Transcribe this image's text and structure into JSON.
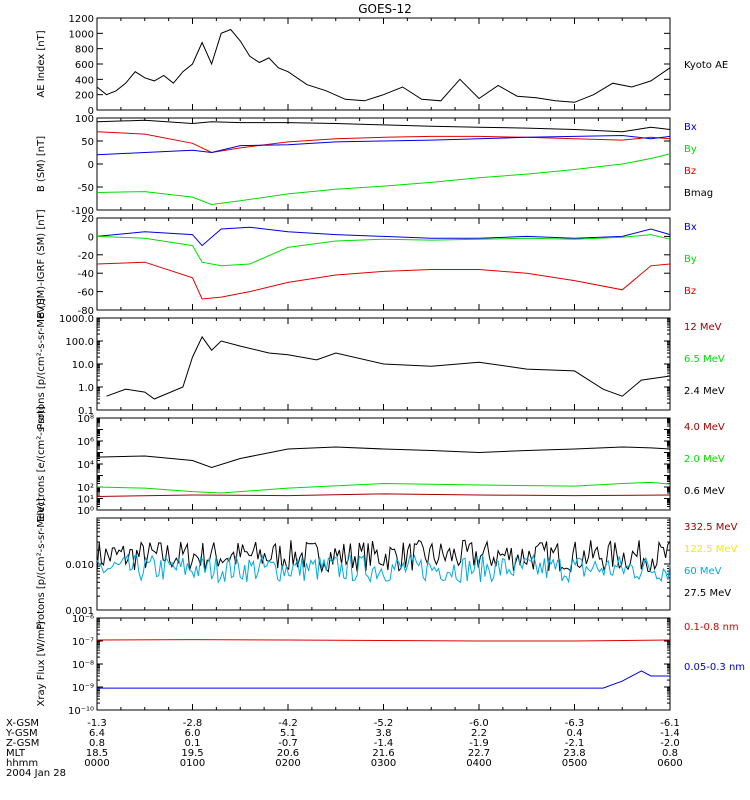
{
  "chart_data": {
    "type": "line",
    "title": "GOES-12",
    "date_label": "2004 Jan 28",
    "colors": {
      "black": "#000000",
      "red": "#e00000",
      "green": "#00dd00",
      "blue": "#0000dd",
      "darkred": "#a00000",
      "yellow": "#eeee00",
      "cyan": "#00aadd"
    },
    "time_ticks": [
      "0000",
      "0100",
      "0200",
      "0300",
      "0400",
      "0500",
      "0600"
    ],
    "ephemeris": [
      {
        "label": "X-GSM",
        "values": [
          "-1.3",
          "-2.8",
          "-4.2",
          "-5.2",
          "-6.0",
          "-6.3",
          "-6.1"
        ]
      },
      {
        "label": "Y-GSM",
        "values": [
          "6.4",
          "6.0",
          "5.1",
          "3.8",
          "2.2",
          "0.4",
          "-1.4"
        ]
      },
      {
        "label": "Z-GSM",
        "values": [
          "0.8",
          "0.1",
          "-0.7",
          "-1.4",
          "-1.9",
          "-2.1",
          "-2.0"
        ]
      },
      {
        "label": "MLT",
        "values": [
          "18.5",
          "19.5",
          "20.6",
          "21.6",
          "22.7",
          "23.8",
          "0.8"
        ]
      },
      {
        "label": "hhmm",
        "values": [
          "0000",
          "0100",
          "0200",
          "0300",
          "0400",
          "0500",
          "0600"
        ]
      }
    ],
    "panels": [
      {
        "id": "ae",
        "ylabel": "AE Index [nT]",
        "scale": "linear",
        "ylim": [
          0,
          1200
        ],
        "yticks": [
          0,
          200,
          400,
          600,
          800,
          1000,
          1200
        ],
        "legend": [
          {
            "text": "Kyoto AE",
            "color": "black"
          }
        ],
        "series": [
          {
            "name": "Kyoto AE",
            "color": "black",
            "x": [
              0,
              0.1,
              0.2,
              0.3,
              0.4,
              0.5,
              0.6,
              0.7,
              0.8,
              0.9,
              1.0,
              1.1,
              1.2,
              1.3,
              1.4,
              1.5,
              1.6,
              1.7,
              1.8,
              1.9,
              2.0,
              2.2,
              2.4,
              2.6,
              2.8,
              3.0,
              3.2,
              3.4,
              3.6,
              3.8,
              4.0,
              4.2,
              4.4,
              4.6,
              4.8,
              5.0,
              5.2,
              5.4,
              5.6,
              5.8,
              6.0
            ],
            "y": [
              300,
              200,
              250,
              350,
              500,
              420,
              380,
              450,
              350,
              500,
              600,
              880,
              600,
              1000,
              1050,
              900,
              700,
              620,
              680,
              550,
              500,
              330,
              250,
              140,
              120,
              200,
              300,
              140,
              120,
              400,
              150,
              320,
              180,
              160,
              120,
              100,
              200,
              350,
              300,
              380,
              550
            ]
          }
        ]
      },
      {
        "id": "bsm",
        "ylabel": "B (SM) [nT]",
        "scale": "linear",
        "ylim": [
          -100,
          100
        ],
        "yticks": [
          -100,
          -50,
          0,
          50,
          100
        ],
        "legend": [
          {
            "text": "Bx",
            "color": "blue"
          },
          {
            "text": "By",
            "color": "green"
          },
          {
            "text": "Bz",
            "color": "red"
          },
          {
            "text": "Bmag",
            "color": "black"
          }
        ],
        "series": [
          {
            "name": "Bmag",
            "color": "black",
            "x": [
              0,
              0.5,
              1.0,
              1.2,
              1.5,
              2.0,
              2.5,
              3.0,
              3.5,
              4.0,
              4.5,
              5.0,
              5.5,
              5.8,
              6.0
            ],
            "y": [
              92,
              95,
              88,
              92,
              90,
              90,
              88,
              85,
              82,
              80,
              78,
              75,
              70,
              80,
              75
            ]
          },
          {
            "name": "Bz",
            "color": "red",
            "x": [
              0,
              0.5,
              1.0,
              1.2,
              1.5,
              2.0,
              2.5,
              3.0,
              3.5,
              4.0,
              4.5,
              5.0,
              5.5,
              5.8,
              6.0
            ],
            "y": [
              70,
              65,
              45,
              25,
              35,
              48,
              55,
              58,
              60,
              60,
              58,
              55,
              52,
              58,
              55
            ]
          },
          {
            "name": "Bx",
            "color": "blue",
            "x": [
              0,
              0.5,
              1.0,
              1.2,
              1.5,
              2.0,
              2.5,
              3.0,
              3.5,
              4.0,
              4.5,
              5.0,
              5.5,
              5.8,
              6.0
            ],
            "y": [
              20,
              25,
              30,
              25,
              40,
              42,
              48,
              50,
              52,
              55,
              58,
              60,
              62,
              55,
              60
            ]
          },
          {
            "name": "By",
            "color": "green",
            "x": [
              0,
              0.5,
              1.0,
              1.2,
              1.5,
              2.0,
              2.5,
              3.0,
              3.5,
              4.0,
              4.5,
              5.0,
              5.5,
              5.8,
              6.0
            ],
            "y": [
              -62,
              -60,
              -72,
              -88,
              -80,
              -65,
              -55,
              -48,
              -40,
              -30,
              -22,
              -12,
              0,
              12,
              22
            ]
          }
        ]
      },
      {
        "id": "bdiff",
        "ylabel": "B (SM)-IGRF (SM) [nT]",
        "scale": "linear",
        "ylim": [
          -80,
          20
        ],
        "yticks": [
          -80,
          -60,
          -40,
          -20,
          0,
          20
        ],
        "legend": [
          {
            "text": "Bx",
            "color": "blue"
          },
          {
            "text": "By",
            "color": "green"
          },
          {
            "text": "Bz",
            "color": "red"
          }
        ],
        "series": [
          {
            "name": "Bx",
            "color": "blue",
            "x": [
              0,
              0.5,
              1.0,
              1.1,
              1.3,
              1.6,
              2.0,
              2.5,
              3.0,
              3.5,
              4.0,
              4.5,
              5.0,
              5.5,
              5.8,
              6.0
            ],
            "y": [
              0,
              5,
              2,
              -10,
              8,
              10,
              5,
              2,
              0,
              -2,
              -2,
              0,
              -2,
              0,
              8,
              2
            ]
          },
          {
            "name": "By",
            "color": "green",
            "x": [
              0,
              0.5,
              1.0,
              1.1,
              1.3,
              1.6,
              2.0,
              2.5,
              3.0,
              3.5,
              4.0,
              4.5,
              5.0,
              5.5,
              5.8,
              6.0
            ],
            "y": [
              0,
              -2,
              -10,
              -28,
              -32,
              -30,
              -12,
              -5,
              -3,
              -4,
              -3,
              -2,
              -3,
              -1,
              2,
              -3
            ]
          },
          {
            "name": "Bz",
            "color": "red",
            "x": [
              0,
              0.5,
              1.0,
              1.1,
              1.3,
              1.6,
              2.0,
              2.5,
              3.0,
              3.5,
              4.0,
              4.5,
              5.0,
              5.5,
              5.8,
              6.0
            ],
            "y": [
              -30,
              -28,
              -45,
              -68,
              -66,
              -60,
              -50,
              -42,
              -38,
              -36,
              -36,
              -40,
              -48,
              -58,
              -32,
              -30
            ]
          }
        ]
      },
      {
        "id": "protons_low",
        "ylabel": "Protons [p/(cm²-s-sr-MeV)]",
        "scale": "log",
        "ylim": [
          0.1,
          1000
        ],
        "yticks": [
          0.1,
          1.0,
          10.0,
          100.0,
          1000.0
        ],
        "ytick_labels": [
          "0.1",
          "1.0",
          "10.0",
          "100.0",
          "1000.0"
        ],
        "legend": [
          {
            "text": "12 MeV",
            "color": "darkred"
          },
          {
            "text": "6.5 MeV",
            "color": "green"
          },
          {
            "text": "2.4 MeV",
            "color": "black"
          }
        ],
        "series": [
          {
            "name": "2.4 MeV",
            "color": "black",
            "x": [
              0.1,
              0.3,
              0.5,
              0.6,
              0.9,
              1.0,
              1.1,
              1.2,
              1.3,
              1.5,
              1.8,
              2.0,
              2.3,
              2.5,
              3.0,
              3.5,
              4.0,
              4.5,
              5.0,
              5.3,
              5.5,
              5.7,
              6.0
            ],
            "y": [
              0.4,
              0.8,
              0.6,
              0.3,
              1.0,
              20,
              150,
              40,
              100,
              60,
              30,
              25,
              15,
              30,
              10,
              8,
              12,
              6,
              5,
              0.8,
              0.4,
              2,
              3
            ]
          }
        ]
      },
      {
        "id": "electrons",
        "ylabel": "Electrons [e/(cm²-s-sr)]",
        "scale": "log",
        "ylim": [
          1,
          100000000
        ],
        "yticks": [
          1,
          10,
          100,
          1000,
          10000,
          100000,
          1000000,
          10000000,
          100000000
        ],
        "ytick_labels": [
          "10⁰",
          "10¹",
          "10²",
          "",
          "10⁴",
          "",
          "10⁶",
          "",
          "10⁸"
        ],
        "legend": [
          {
            "text": "4.0 MeV",
            "color": "darkred"
          },
          {
            "text": "2.0 MeV",
            "color": "green"
          },
          {
            "text": "0.6 MeV",
            "color": "black"
          }
        ],
        "series": [
          {
            "name": "0.6 MeV",
            "color": "black",
            "x": [
              0,
              0.5,
              1.0,
              1.2,
              1.5,
              2.0,
              2.5,
              3.0,
              3.5,
              4.0,
              4.5,
              5.0,
              5.5,
              5.8,
              6.0
            ],
            "y": [
              40000,
              50000,
              20000,
              5000,
              30000,
              200000,
              300000,
              200000,
              150000,
              100000,
              150000,
              200000,
              300000,
              250000,
              200000
            ]
          },
          {
            "name": "2.0 MeV",
            "color": "green",
            "x": [
              0,
              0.5,
              1.0,
              1.3,
              2.0,
              3.0,
              4.0,
              5.0,
              5.5,
              5.8,
              6.0
            ],
            "y": [
              100,
              80,
              40,
              30,
              80,
              200,
              150,
              120,
              200,
              250,
              180
            ]
          },
          {
            "name": "4.0 MeV",
            "color": "darkred",
            "x": [
              0,
              1.0,
              2.0,
              3.0,
              4.0,
              5.0,
              6.0
            ],
            "y": [
              15,
              20,
              18,
              25,
              20,
              18,
              20
            ]
          }
        ]
      },
      {
        "id": "protons_high",
        "ylabel": "Protons [p/(cm²-s-sr-MeV)]",
        "scale": "log",
        "ylim": [
          0.001,
          0.1
        ],
        "yticks": [
          0.001,
          0.01
        ],
        "ytick_labels": [
          "0.001",
          "0.010"
        ],
        "legend": [
          {
            "text": "332.5 MeV",
            "color": "darkred"
          },
          {
            "text": "122.5 MeV",
            "color": "yellow"
          },
          {
            "text": "60 MeV",
            "color": "cyan"
          },
          {
            "text": "27.5 MeV",
            "color": "black"
          }
        ],
        "series": [
          {
            "name": "27.5 MeV",
            "color": "black",
            "level": 0.015,
            "variation": 2.2
          },
          {
            "name": "60 MeV",
            "color": "cyan",
            "level": 0.008,
            "variation": 2.0
          }
        ]
      },
      {
        "id": "xray",
        "ylabel": "Xray Flux [W/m²]",
        "scale": "log",
        "ylim": [
          1e-10,
          1e-06
        ],
        "yticks": [
          1e-10,
          1e-09,
          1e-08,
          1e-07,
          1e-06
        ],
        "ytick_labels": [
          "10⁻¹⁰",
          "10⁻⁹",
          "10⁻⁸",
          "10⁻⁷",
          "10⁻⁶"
        ],
        "legend": [
          {
            "text": "0.1-0.8 nm",
            "color": "red"
          },
          {
            "text": "0.05-0.3 nm",
            "color": "blue"
          }
        ],
        "series": [
          {
            "name": "0.1-0.8 nm",
            "color": "red",
            "x": [
              0,
              1.0,
              2.0,
              3.0,
              4.0,
              5.0,
              6.0
            ],
            "y": [
              1.1e-07,
              1.15e-07,
              1.1e-07,
              1.05e-07,
              1e-07,
              1e-07,
              1.1e-07
            ]
          },
          {
            "name": "0.05-0.3 nm",
            "color": "blue",
            "x": [
              0,
              1.0,
              2.0,
              3.0,
              4.0,
              5.0,
              5.3,
              5.5,
              5.7,
              5.8,
              6.0
            ],
            "y": [
              9e-10,
              9e-10,
              9e-10,
              9e-10,
              9e-10,
              9e-10,
              9e-10,
              1.8e-09,
              5e-09,
              3e-09,
              3e-09
            ]
          }
        ]
      }
    ]
  }
}
